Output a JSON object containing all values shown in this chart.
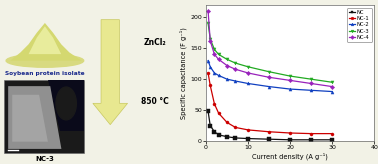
{
  "chart": {
    "x_label": "Current density (A g⁻¹)",
    "y_label": "Specific capacitance (F g⁻¹)",
    "xlim": [
      0,
      40
    ],
    "ylim": [
      0,
      220
    ],
    "yticks": [
      0,
      50,
      100,
      150,
      200
    ],
    "xticks": [
      0,
      10,
      20,
      30,
      40
    ],
    "series": [
      {
        "label": "NC",
        "color": "#111111",
        "marker": "s",
        "x": [
          0.5,
          1,
          2,
          3,
          5,
          7,
          10,
          15,
          20,
          25,
          30
        ],
        "y": [
          48,
          25,
          15,
          10,
          7,
          5,
          4,
          3,
          2,
          2,
          2
        ]
      },
      {
        "label": "NC-1",
        "color": "#cc0000",
        "marker": "o",
        "x": [
          0.5,
          1,
          2,
          3,
          5,
          7,
          10,
          15,
          20,
          25,
          30
        ],
        "y": [
          110,
          90,
          60,
          45,
          30,
          22,
          18,
          15,
          13,
          12,
          12
        ]
      },
      {
        "label": "NC-2",
        "color": "#1040c0",
        "marker": "^",
        "x": [
          0.5,
          1,
          2,
          3,
          5,
          7,
          10,
          15,
          20,
          25,
          30
        ],
        "y": [
          130,
          120,
          110,
          106,
          100,
          97,
          93,
          88,
          84,
          82,
          80
        ]
      },
      {
        "label": "NC-3",
        "color": "#22aa22",
        "marker": "v",
        "x": [
          0.5,
          1,
          2,
          3,
          5,
          7,
          10,
          15,
          20,
          25,
          30
        ],
        "y": [
          190,
          165,
          148,
          140,
          132,
          126,
          120,
          112,
          105,
          100,
          95
        ]
      },
      {
        "label": "NC-4",
        "color": "#9922bb",
        "marker": "D",
        "x": [
          0.5,
          1,
          2,
          3,
          5,
          7,
          10,
          15,
          20,
          25,
          30
        ],
        "y": [
          210,
          162,
          140,
          132,
          122,
          116,
          110,
          103,
          98,
          93,
          88
        ]
      }
    ]
  },
  "left_panel": {
    "title_top": "Soybean protein isolate",
    "title_bottom": "NC-3",
    "arrow_text_top": "ZnCl₂",
    "arrow_text_bottom": "850 °C",
    "bg_color": "#f2f2e6"
  }
}
